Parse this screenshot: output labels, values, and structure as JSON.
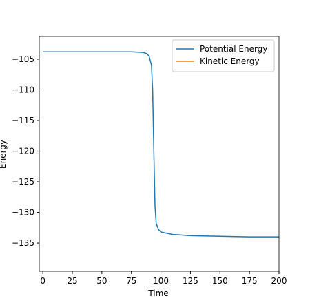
{
  "chart_data": {
    "type": "line",
    "xlabel": "Time",
    "ylabel": "Energy",
    "x": [
      0,
      25,
      50,
      75,
      85,
      88,
      90,
      92,
      93,
      94,
      95,
      96,
      98,
      100,
      110,
      125,
      150,
      175,
      200
    ],
    "series": [
      {
        "name": "Potential Energy",
        "color": "#1f77b4",
        "values": [
          -103.8,
          -103.8,
          -103.8,
          -103.8,
          -103.9,
          -104.1,
          -104.5,
          -106,
          -110,
          -120,
          -129,
          -131.8,
          -132.8,
          -133.2,
          -133.6,
          -133.8,
          -133.9,
          -134.0,
          -134.0
        ]
      },
      {
        "name": "Kinetic Energy",
        "color": "#ff7f0e",
        "values": [
          null,
          null,
          null,
          null,
          null,
          null,
          null,
          null,
          null,
          null,
          null,
          null,
          null,
          null,
          null,
          null,
          null,
          null,
          null
        ]
      }
    ],
    "xlim": [
      -3,
      200
    ],
    "ylim": [
      -139.6,
      -101.3
    ],
    "xticks": [
      0,
      25,
      50,
      75,
      100,
      125,
      150,
      175,
      200
    ],
    "yticks": [
      {
        "value": -135,
        "label": "−135"
      },
      {
        "value": -130,
        "label": "−130"
      },
      {
        "value": -125,
        "label": "−125"
      },
      {
        "value": -120,
        "label": "−120"
      },
      {
        "value": -115,
        "label": "−115"
      },
      {
        "value": -110,
        "label": "−110"
      },
      {
        "value": -105,
        "label": "−105"
      }
    ],
    "legend": "upper right"
  }
}
